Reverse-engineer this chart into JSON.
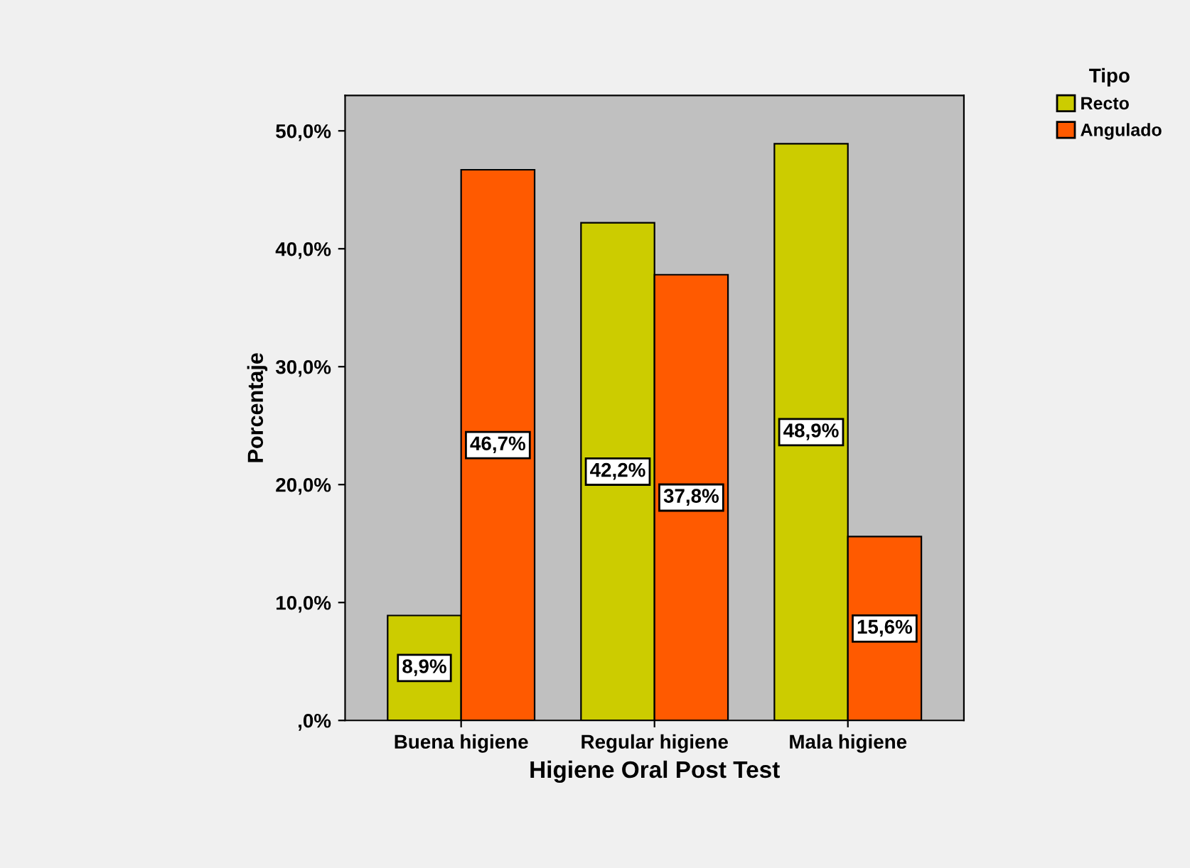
{
  "chart_data": {
    "type": "bar",
    "xlabel": "Higiene Oral Post Test",
    "ylabel": "Porcentaje",
    "legend_title": "Tipo",
    "categories": [
      "Buena higiene",
      "Regular higiene",
      "Mala higiene"
    ],
    "series": [
      {
        "name": "Recto",
        "color": "#cccc00",
        "values": [
          8.9,
          42.2,
          48.9
        ],
        "value_labels": [
          "8,9%",
          "42,2%",
          "48,9%"
        ]
      },
      {
        "name": "Angulado",
        "color": "#ff5a00",
        "values": [
          46.7,
          37.8,
          15.6
        ],
        "value_labels": [
          "46,7%",
          "37,8%",
          "15,6%"
        ]
      }
    ],
    "ylim": [
      0,
      53
    ],
    "yticks": [
      {
        "value": 0,
        "label": ",0%"
      },
      {
        "value": 10,
        "label": "10,0%"
      },
      {
        "value": 20,
        "label": "20,0%"
      },
      {
        "value": 30,
        "label": "30,0%"
      },
      {
        "value": 40,
        "label": "40,0%"
      },
      {
        "value": 50,
        "label": "50,0%"
      }
    ],
    "legend": "top right",
    "grid": false
  }
}
